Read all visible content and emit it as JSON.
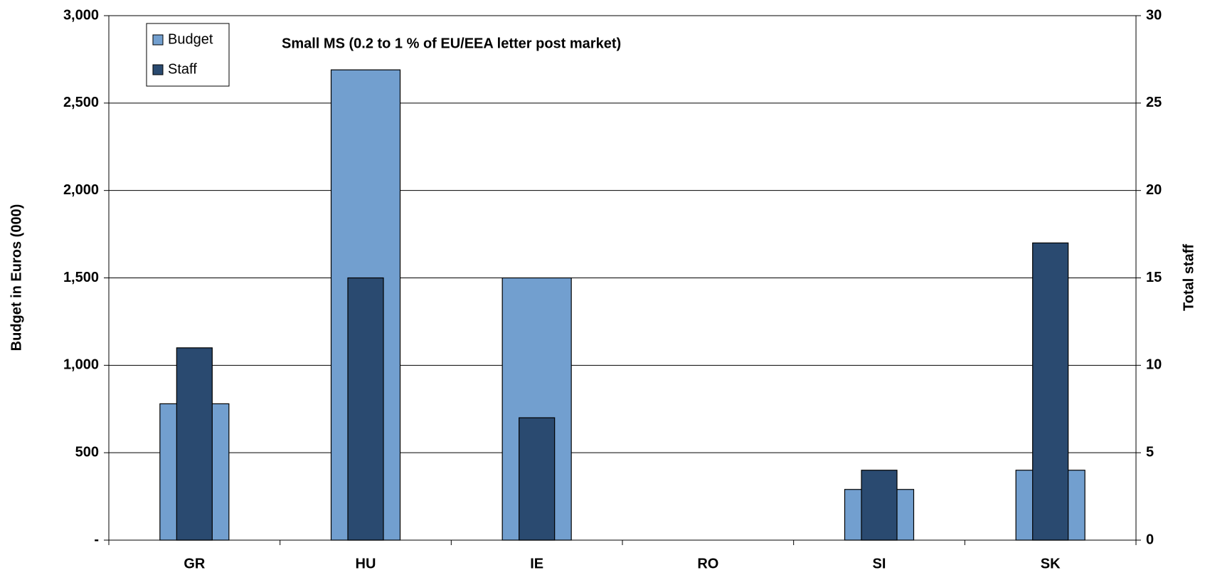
{
  "chart_data": {
    "type": "bar",
    "title": "Small MS (0.2 to 1 % of EU/EEA letter post market)",
    "ylabel": "Budget in Euros (000)",
    "y2label": "Total staff",
    "categories": [
      "GR",
      "HU",
      "IE",
      "RO",
      "SI",
      "SK"
    ],
    "series": [
      {
        "name": "Budget",
        "color": "#729fcf",
        "values": [
          780,
          2690,
          1500,
          null,
          290,
          400
        ]
      },
      {
        "name": "Staff",
        "color": "#2a4a70",
        "axis": "y2",
        "values": [
          11,
          15,
          7,
          null,
          4,
          17
        ]
      }
    ],
    "ylim": [
      0,
      3000
    ],
    "yticks": [
      {
        "value": 0,
        "label": "-"
      },
      500,
      {
        "value": 1000,
        "label": "1,000"
      },
      {
        "value": 1500,
        "label": "1,500"
      },
      {
        "value": 2000,
        "label": "2,000"
      },
      {
        "value": 2500,
        "label": "2,500"
      },
      {
        "value": 3000,
        "label": "3,000"
      }
    ],
    "y2lim": [
      0,
      30
    ],
    "y2ticks": [
      0,
      5,
      10,
      15,
      20,
      25,
      30
    ],
    "grid": true,
    "legend": "upper left"
  }
}
